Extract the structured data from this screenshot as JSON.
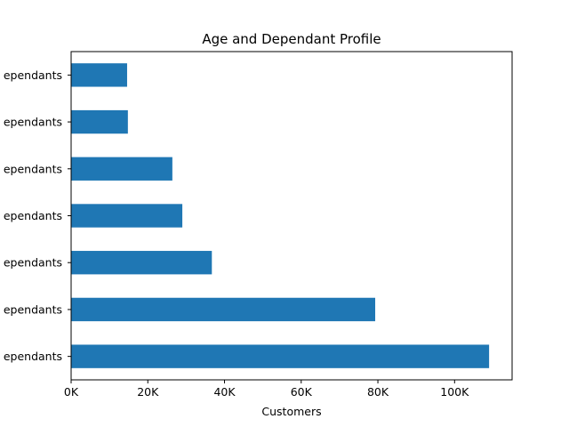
{
  "chart_data": {
    "type": "bar",
    "orientation": "horizontal",
    "title": "Age and Dependant Profile",
    "xlabel": "Customers",
    "ylabel": "",
    "xlim": [
      0,
      115000
    ],
    "x_ticks": [
      0,
      20000,
      40000,
      60000,
      80000,
      100000
    ],
    "x_tick_labels": [
      "0K",
      "20K",
      "40K",
      "60K",
      "80K",
      "100K"
    ],
    "categories_bottom_to_top": [
      "ependants",
      "ependants",
      "ependants",
      "ependants",
      "ependants",
      "ependants",
      "ependants"
    ],
    "values_bottom_to_top": [
      109000,
      79300,
      36700,
      29000,
      26400,
      14800,
      14600
    ],
    "bar_color": "#1f77b4",
    "grid": false,
    "legend": "none"
  }
}
